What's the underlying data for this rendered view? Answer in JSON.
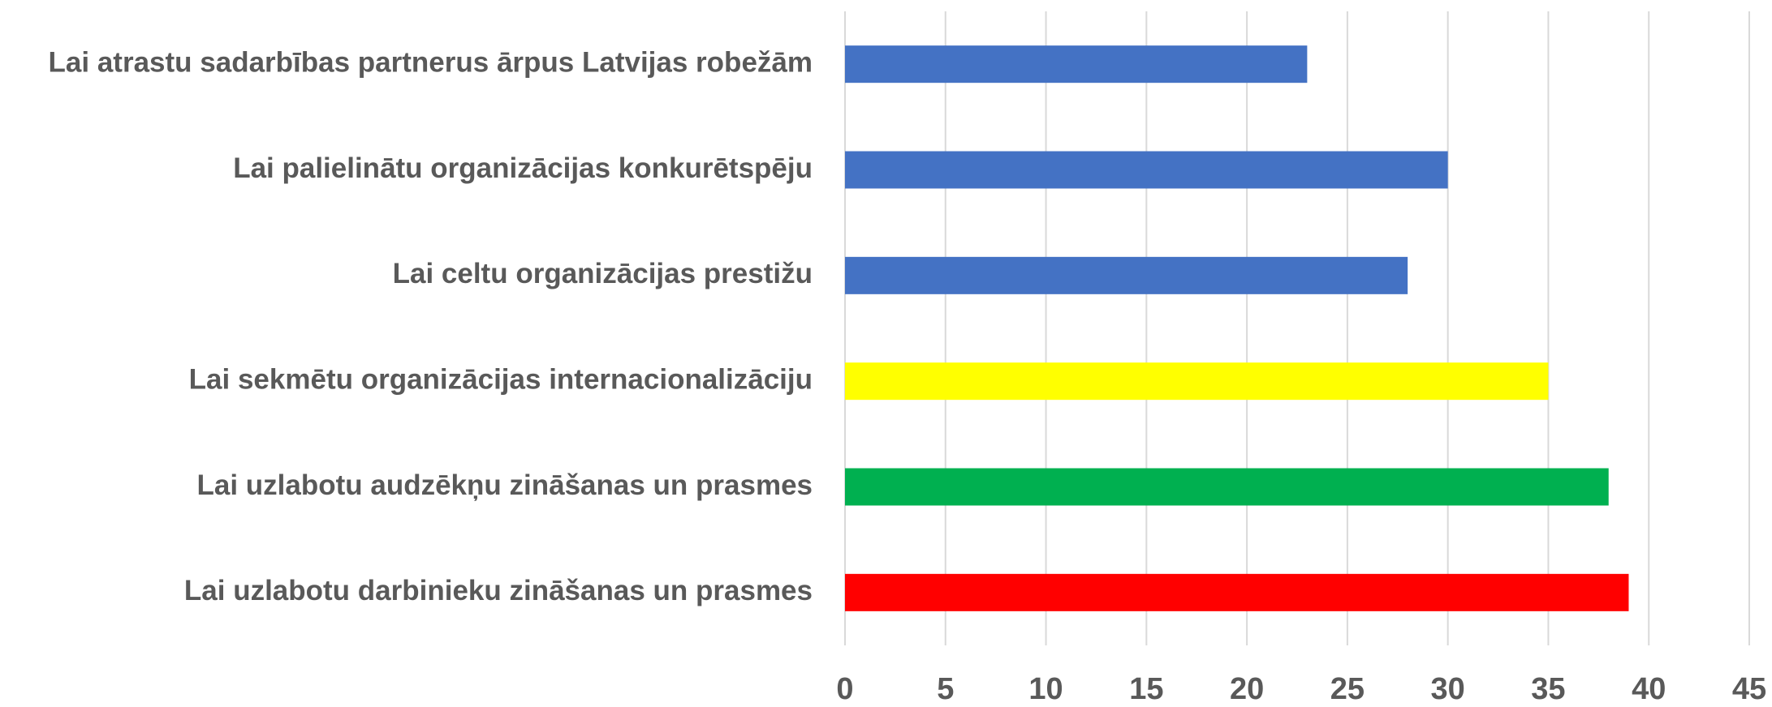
{
  "chart_data": {
    "type": "bar",
    "orientation": "horizontal",
    "categories": [
      "Lai atrastu sadarbības partnerus ārpus Latvijas robežām",
      "Lai palielinātu organizācijas konkurētspēju",
      "Lai celtu organizācijas prestižu",
      "Lai sekmētu organizācijas internacionalizāciju",
      "Lai uzlabotu audzēkņu zināšanas un prasmes",
      "Lai uzlabotu darbinieku zināšanas un prasmes"
    ],
    "values": [
      23,
      30,
      28,
      35,
      38,
      39
    ],
    "colors": [
      "#4472c4",
      "#4472c4",
      "#4472c4",
      "#ffff00",
      "#00b050",
      "#ff0000"
    ],
    "xlim": [
      0,
      45
    ],
    "xticks": [
      0,
      5,
      10,
      15,
      20,
      25,
      30,
      35,
      40,
      45
    ],
    "grid": true
  }
}
